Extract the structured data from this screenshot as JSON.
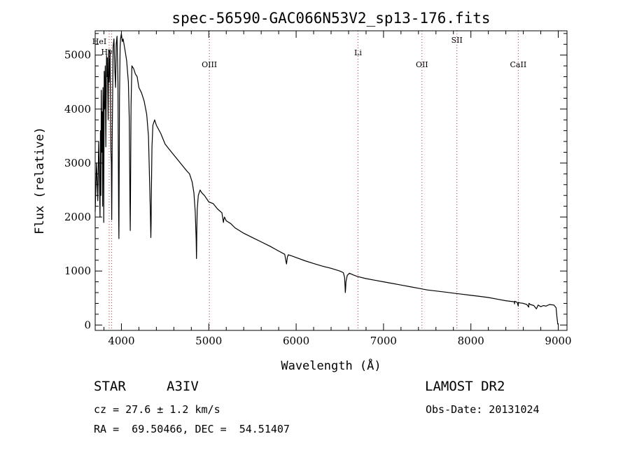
{
  "chart_data": {
    "type": "line",
    "title": "spec-56590-GAC066N53V2_sp13-176.fits",
    "xlabel": "Wavelength (Å)",
    "ylabel": "Flux (relative)",
    "xlim": [
      3700,
      9100
    ],
    "ylim": [
      -100,
      5450
    ],
    "xticks": [
      4000,
      5000,
      6000,
      7000,
      8000,
      9000
    ],
    "yticks": [
      0,
      1000,
      2000,
      3000,
      4000,
      5000
    ],
    "grid": false,
    "legend": "none",
    "series": [
      {
        "color": "#000000",
        "x": [
          3700,
          3715,
          3730,
          3740,
          3750,
          3755,
          3760,
          3765,
          3770,
          3775,
          3780,
          3785,
          3790,
          3795,
          3798,
          3803,
          3808,
          3815,
          3822,
          3830,
          3835,
          3840,
          3848,
          3855,
          3860,
          3870,
          3880,
          3885,
          3889,
          3895,
          3905,
          3915,
          3925,
          3933,
          3940,
          3950,
          3960,
          3968,
          3972,
          3978,
          3985,
          3990,
          4000,
          4010,
          4020,
          4030,
          4045,
          4060,
          4080,
          4090,
          4098,
          4101,
          4104,
          4110,
          4120,
          4140,
          4160,
          4180,
          4200,
          4230,
          4260,
          4290,
          4310,
          4330,
          4337,
          4340,
          4343,
          4350,
          4360,
          4380,
          4400,
          4450,
          4500,
          4550,
          4600,
          4650,
          4700,
          4750,
          4780,
          4810,
          4830,
          4845,
          4855,
          4859,
          4861,
          4863,
          4868,
          4880,
          4900,
          4920,
          4950,
          5000,
          5050,
          5100,
          5150,
          5168,
          5172,
          5180,
          5200,
          5250,
          5300,
          5400,
          5500,
          5600,
          5700,
          5800,
          5870,
          5885,
          5890,
          5895,
          5900,
          5910,
          5950,
          6000,
          6100,
          6200,
          6300,
          6400,
          6500,
          6540,
          6555,
          6560,
          6563,
          6566,
          6570,
          6585,
          6610,
          6650,
          6700,
          6800,
          6900,
          7000,
          7100,
          7200,
          7300,
          7400,
          7500,
          7600,
          7700,
          7800,
          7900,
          8000,
          8100,
          8200,
          8300,
          8400,
          8498,
          8500,
          8502,
          8530,
          8542,
          8544,
          8560,
          8600,
          8640,
          8662,
          8664,
          8680,
          8720,
          8750,
          8770,
          8800,
          8830,
          8860,
          8900,
          8950,
          8975,
          8985,
          8995
        ],
        "y": [
          2100,
          3000,
          2300,
          3400,
          2600,
          2000,
          3600,
          2400,
          4350,
          3200,
          3950,
          2200,
          4400,
          3800,
          1900,
          4700,
          4000,
          4800,
          3300,
          5000,
          4600,
          4950,
          3800,
          5100,
          4500,
          5100,
          3200,
          3000,
          1950,
          3400,
          5150,
          5300,
          4700,
          4400,
          5200,
          5350,
          4500,
          2000,
          1600,
          4200,
          5150,
          5300,
          5400,
          5250,
          5300,
          5200,
          5050,
          4900,
          4500,
          3800,
          2200,
          1750,
          2300,
          4050,
          4800,
          4750,
          4650,
          4600,
          4400,
          4300,
          4150,
          3900,
          3500,
          2200,
          1620,
          1900,
          2500,
          3300,
          3700,
          3800,
          3700,
          3550,
          3350,
          3250,
          3150,
          3050,
          2950,
          2850,
          2800,
          2650,
          2450,
          2100,
          1600,
          1230,
          1400,
          1800,
          2150,
          2400,
          2500,
          2450,
          2400,
          2280,
          2250,
          2150,
          2080,
          1900,
          1950,
          2000,
          1930,
          1880,
          1800,
          1700,
          1620,
          1540,
          1460,
          1370,
          1310,
          1170,
          1130,
          1200,
          1260,
          1300,
          1280,
          1250,
          1190,
          1140,
          1090,
          1050,
          1000,
          970,
          880,
          700,
          600,
          660,
          800,
          920,
          960,
          930,
          900,
          860,
          830,
          800,
          770,
          740,
          710,
          680,
          650,
          630,
          610,
          590,
          570,
          550,
          530,
          510,
          480,
          450,
          430,
          390,
          440,
          420,
          350,
          420,
          410,
          400,
          380,
          330,
          400,
          380,
          360,
          300,
          370,
          340,
          360,
          350,
          380,
          370,
          320,
          150,
          10
        ]
      }
    ],
    "lines": [
      {
        "label": "Hγ",
        "x": 3889
      },
      {
        "label": "HeI",
        "x": 3860
      },
      {
        "label": "OIII",
        "x": 5007
      },
      {
        "label": "Li",
        "x": 6708
      },
      {
        "label": "OII",
        "x": 7440
      },
      {
        "label": "SII",
        "x": 7840
      },
      {
        "label": "CaII",
        "x": 8542
      }
    ]
  },
  "info": {
    "object_type": "STAR",
    "subclass": "A3IV",
    "survey": "LAMOST DR2",
    "cz": "cz = 27.6 ± 1.2 km/s",
    "obs_date": "Obs-Date: 20131024",
    "coords": "RA =  69.50466, DEC =  54.51407"
  }
}
